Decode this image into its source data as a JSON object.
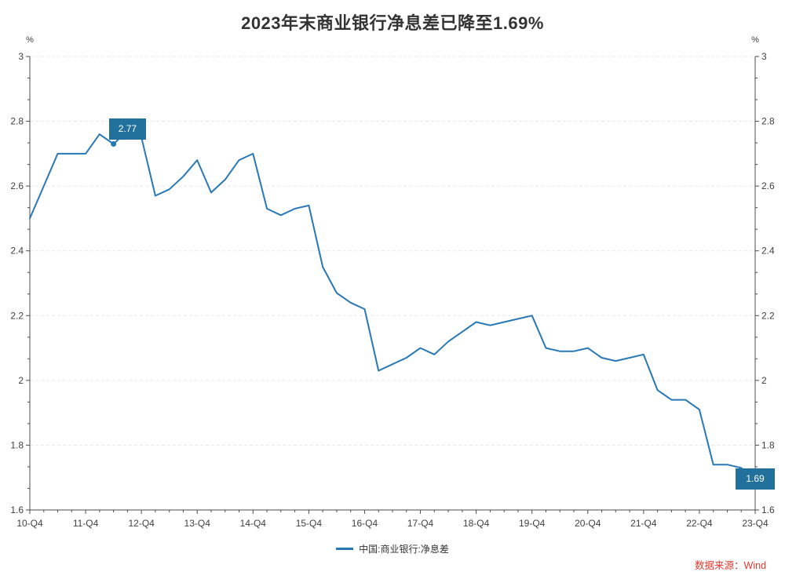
{
  "title": "2023年末商业银行净息差已降至1.69%",
  "source": "数据来源：Wind",
  "legend": {
    "label": "中国:商业银行:净息差"
  },
  "colors": {
    "line": "#2878b5",
    "callout_box": "#21719c",
    "source_text": "#e0392f",
    "title_text": "#333333",
    "grid": "#e7e7e7",
    "axis": "#4d4d4d",
    "tick_label": "#404040"
  },
  "y_axis": {
    "unit_left": "%",
    "unit_right": "%",
    "tick_labels": [
      "3",
      "2.8",
      "2.6",
      "2.4",
      "2.2",
      "2",
      "1.8",
      "1.6"
    ]
  },
  "x_axis": {
    "tick_labels": [
      "10-Q4",
      "11-Q4",
      "12-Q4",
      "13-Q4",
      "14-Q4",
      "15-Q4",
      "16-Q4",
      "17-Q4",
      "18-Q4",
      "19-Q4",
      "20-Q4",
      "21-Q4",
      "22-Q4",
      "23-Q4"
    ]
  },
  "annotations": [
    {
      "label": "2.77",
      "anchor": "12-Q3",
      "tail_point": "12-Q2"
    },
    {
      "label": "1.69",
      "anchor": "23-Q4"
    }
  ],
  "chart_data": {
    "type": "line",
    "title": "2023年末商业银行净息差已降至1.69%",
    "ylabel": "%",
    "ylim": [
      1.6,
      3.0
    ],
    "y_tick_step": 0.2,
    "grid": "dashed-horizontal",
    "legend_position": "bottom-center",
    "series_name": "中国:商业银行:净息差",
    "x": [
      "10-Q4",
      "11-Q1",
      "11-Q2",
      "11-Q3",
      "11-Q4",
      "12-Q1",
      "12-Q2",
      "12-Q3",
      "12-Q4",
      "13-Q1",
      "13-Q2",
      "13-Q3",
      "13-Q4",
      "14-Q1",
      "14-Q2",
      "14-Q3",
      "14-Q4",
      "15-Q1",
      "15-Q2",
      "15-Q3",
      "15-Q4",
      "16-Q1",
      "16-Q2",
      "16-Q3",
      "16-Q4",
      "17-Q1",
      "17-Q2",
      "17-Q3",
      "17-Q4",
      "18-Q1",
      "18-Q2",
      "18-Q3",
      "18-Q4",
      "19-Q1",
      "19-Q2",
      "19-Q3",
      "19-Q4",
      "20-Q1",
      "20-Q2",
      "20-Q3",
      "20-Q4",
      "21-Q1",
      "21-Q2",
      "21-Q3",
      "21-Q4",
      "22-Q1",
      "22-Q2",
      "22-Q3",
      "22-Q4",
      "23-Q1",
      "23-Q2",
      "23-Q3",
      "23-Q4"
    ],
    "values": [
      2.5,
      2.6,
      2.7,
      2.7,
      2.7,
      2.76,
      2.73,
      2.77,
      2.75,
      2.57,
      2.59,
      2.63,
      2.68,
      2.58,
      2.62,
      2.68,
      2.7,
      2.53,
      2.51,
      2.53,
      2.54,
      2.35,
      2.27,
      2.24,
      2.22,
      2.03,
      2.05,
      2.07,
      2.1,
      2.08,
      2.12,
      2.15,
      2.18,
      2.17,
      2.18,
      2.19,
      2.2,
      2.1,
      2.09,
      2.09,
      2.1,
      2.07,
      2.06,
      2.07,
      2.08,
      1.97,
      1.94,
      1.94,
      1.91,
      1.74,
      1.74,
      1.73,
      1.69
    ]
  }
}
